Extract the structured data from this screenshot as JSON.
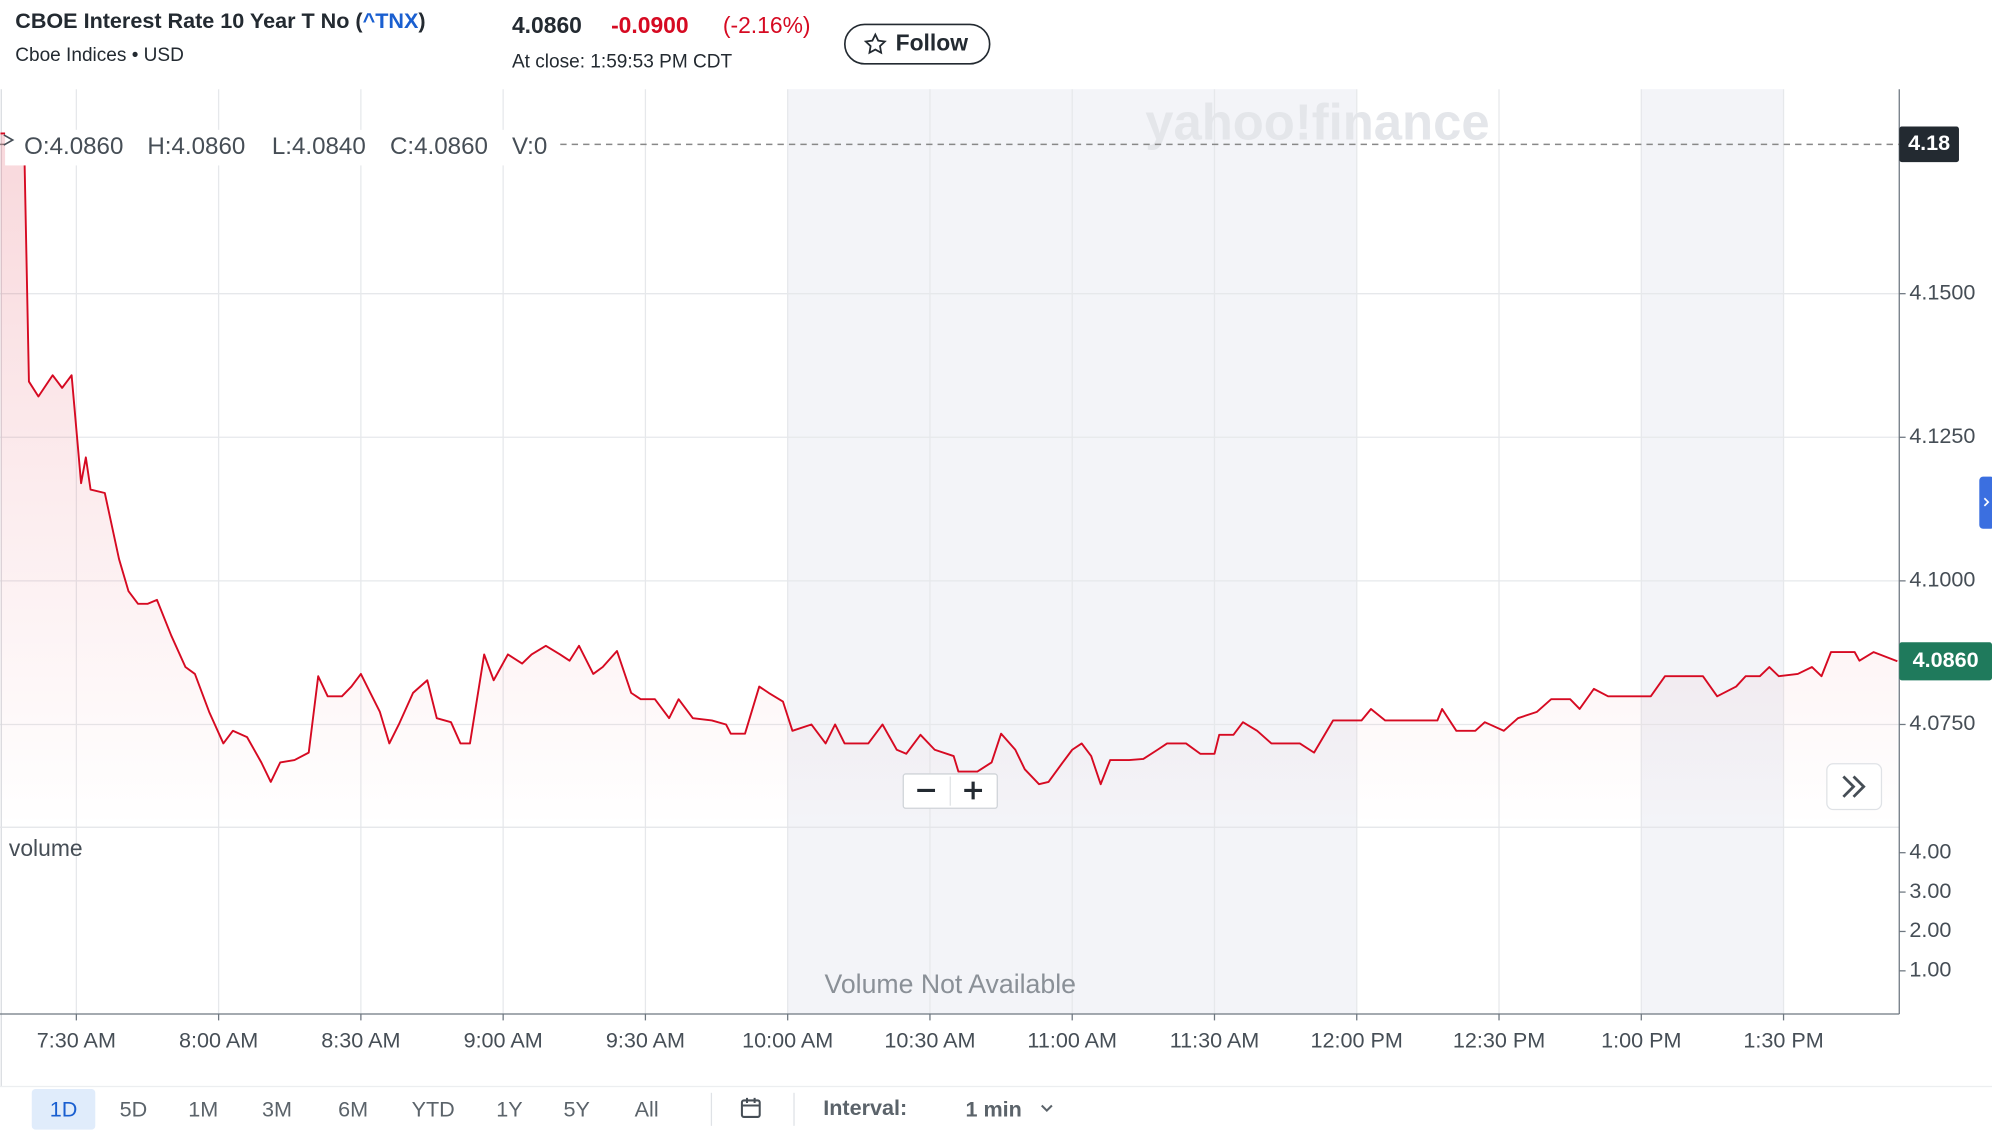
{
  "header": {
    "name": "CBOE Interest Rate 10 Year T No (",
    "symbol": "^TNX",
    "name_end": ")",
    "exchange": "Cboe Indices • USD",
    "price": "4.0860",
    "change": "-0.0900",
    "change_percent": "(-2.16%)",
    "close_time": "At close: 1:59:53 PM CDT",
    "follow": "Follow"
  },
  "chart_data": {
    "type": "line",
    "watermark": "yahoo!finance",
    "ohlc": [
      "O:4.0860",
      "H:4.0860",
      "L:4.0840",
      "C:4.0860",
      "V:0"
    ],
    "x": [
      434,
      437,
      439,
      440,
      442,
      445,
      447,
      449,
      451,
      452,
      453,
      456,
      459,
      461,
      463,
      465,
      467,
      470,
      473,
      475,
      478,
      481,
      483,
      486,
      489,
      491,
      493,
      496,
      499,
      501,
      503,
      506,
      508,
      510,
      512,
      514,
      516,
      518,
      521,
      524,
      526,
      529,
      531,
      533,
      536,
      538,
      541,
      544,
      546,
      549,
      552,
      554,
      556,
      559,
      561,
      564,
      567,
      569,
      572,
      575,
      577,
      580,
      584,
      587,
      588,
      591,
      594,
      596,
      599,
      601,
      605,
      608,
      610,
      612,
      617,
      620,
      623,
      625,
      628,
      631,
      635,
      636,
      640,
      643,
      645,
      648,
      650,
      653,
      655,
      658,
      660,
      662,
      664,
      666,
      668,
      672,
      675,
      678,
      680,
      684,
      687,
      690,
      691,
      694,
      696,
      699,
      702,
      708,
      711,
      715,
      721,
      723,
      726,
      737,
      738,
      741,
      745,
      747,
      751,
      754,
      758,
      761,
      765,
      767,
      770,
      773,
      782,
      785,
      793,
      796,
      800,
      802,
      805,
      807,
      809,
      813,
      816,
      818,
      820,
      825,
      826,
      829,
      834
    ],
    "series": [
      {
        "color": "#d60a22",
        "values": [
          4.1779,
          4.1779,
          4.1763,
          4.1347,
          4.1321,
          4.1358,
          4.1336,
          4.1358,
          4.117,
          4.1215,
          4.1159,
          4.1153,
          4.1038,
          4.0982,
          4.096,
          4.096,
          4.0967,
          4.0905,
          4.085,
          4.0838,
          4.0772,
          4.0717,
          4.0739,
          4.0728,
          4.0684,
          4.065,
          4.0684,
          4.0688,
          4.0701,
          4.0834,
          4.0799,
          4.0799,
          4.0816,
          4.0838,
          4.0805,
          4.0772,
          4.0717,
          4.075,
          4.0805,
          4.0827,
          4.0761,
          4.0754,
          4.0717,
          4.0717,
          4.0872,
          4.0827,
          4.0872,
          4.0856,
          4.0872,
          4.0887,
          4.0872,
          4.0861,
          4.0887,
          4.0838,
          4.085,
          4.0878,
          4.0805,
          4.0794,
          4.0794,
          4.0761,
          4.0794,
          4.0761,
          4.0757,
          4.075,
          4.0734,
          4.0734,
          4.0816,
          4.0805,
          4.079,
          4.0739,
          4.075,
          4.0717,
          4.075,
          4.0717,
          4.0717,
          4.075,
          4.0706,
          4.0699,
          4.0732,
          4.0706,
          4.0695,
          4.0668,
          4.0668,
          4.0684,
          4.0734,
          4.0706,
          4.0672,
          4.0646,
          4.065,
          4.0684,
          4.0706,
          4.0717,
          4.0695,
          4.0646,
          4.0688,
          4.0688,
          4.069,
          4.0706,
          4.0717,
          4.0717,
          4.0699,
          4.0699,
          4.0732,
          4.0732,
          4.0754,
          4.0739,
          4.0717,
          4.0717,
          4.0701,
          4.0757,
          4.0757,
          4.0777,
          4.0757,
          4.0757,
          4.0777,
          4.0739,
          4.0739,
          4.0754,
          4.0739,
          4.0761,
          4.0772,
          4.0794,
          4.0794,
          4.0777,
          4.0812,
          4.0799,
          4.0799,
          4.0834,
          4.0834,
          4.0799,
          4.0816,
          4.0834,
          4.0834,
          4.085,
          4.0834,
          4.0838,
          4.085,
          4.0834,
          4.0876,
          4.0876,
          4.0861,
          4.0876,
          4.086
        ]
      }
    ],
    "xlim": [
      433.9,
      834.4
    ],
    "xticks": [
      {
        "value": 450,
        "label": "7:30 AM"
      },
      {
        "value": 480,
        "label": "8:00 AM"
      },
      {
        "value": 510,
        "label": "8:30 AM"
      },
      {
        "value": 540,
        "label": "9:00 AM"
      },
      {
        "value": 570,
        "label": "9:30 AM"
      },
      {
        "value": 600,
        "label": "10:00 AM"
      },
      {
        "value": 630,
        "label": "10:30 AM"
      },
      {
        "value": 660,
        "label": "11:00 AM"
      },
      {
        "value": 690,
        "label": "11:30 AM"
      },
      {
        "value": 720,
        "label": "12:00 PM"
      },
      {
        "value": 750,
        "label": "12:30 PM"
      },
      {
        "value": 780,
        "label": "1:00 PM"
      },
      {
        "value": 810,
        "label": "1:30 PM"
      }
    ],
    "ylim": [
      4.0571,
      4.1856
    ],
    "yticks": [
      {
        "value": 4.15,
        "label": "4.1500"
      },
      {
        "value": 4.125,
        "label": "4.1250"
      },
      {
        "value": 4.1,
        "label": "4.1000"
      },
      {
        "value": 4.075,
        "label": "4.0750"
      }
    ],
    "grid": true,
    "previous_close": {
      "value": 4.176,
      "label": "4.18"
    },
    "last_price": {
      "value": 4.086,
      "label": "4.0860"
    },
    "volume_title": "volume",
    "volume_note": "Volume Not Available",
    "volume_ylim": [
      -0.097,
      4.516
    ],
    "volume_yticks": [
      {
        "value": 4,
        "label": "4.00"
      },
      {
        "value": 3,
        "label": "3.00"
      },
      {
        "value": 2,
        "label": "2.00"
      },
      {
        "value": 1,
        "label": "1.00"
      }
    ]
  },
  "toolbar": {
    "ranges": [
      "1D",
      "5D",
      "1M",
      "3M",
      "6M",
      "YTD",
      "1Y",
      "5Y",
      "All"
    ],
    "interval_label": "Interval:",
    "interval": "1 min"
  }
}
